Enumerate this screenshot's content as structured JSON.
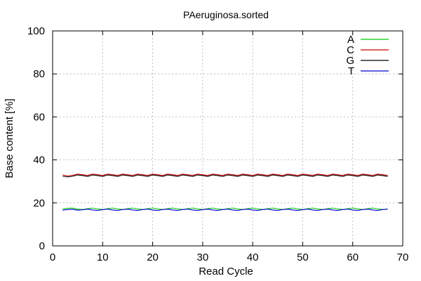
{
  "chart_data": {
    "type": "line",
    "title": "PAeruginosa.sorted",
    "xlabel": "Read Cycle",
    "ylabel": "Base content [%]",
    "xlim": [
      0,
      70
    ],
    "ylim": [
      0,
      100
    ],
    "xticks": [
      0,
      10,
      20,
      30,
      40,
      50,
      60,
      70
    ],
    "yticks": [
      0,
      20,
      40,
      60,
      80,
      100
    ],
    "grid": true,
    "legend_position": "top-right",
    "x": [
      2,
      3,
      4,
      5,
      6,
      7,
      8,
      9,
      10,
      11,
      12,
      13,
      14,
      15,
      16,
      17,
      18,
      19,
      20,
      21,
      22,
      23,
      24,
      25,
      26,
      27,
      28,
      29,
      30,
      31,
      32,
      33,
      34,
      35,
      36,
      37,
      38,
      39,
      40,
      41,
      42,
      43,
      44,
      45,
      46,
      47,
      48,
      49,
      50,
      51,
      52,
      53,
      54,
      55,
      56,
      57,
      58,
      59,
      60,
      61,
      62,
      63,
      64,
      65,
      66,
      67
    ],
    "series": [
      {
        "name": "A",
        "color": "#00cc00",
        "values": [
          17.2,
          17.5,
          17.6,
          17.1,
          16.9,
          17.3,
          17.6,
          17.2,
          16.9,
          17.3,
          17.6,
          17.2,
          16.9,
          17.3,
          17.6,
          17.2,
          16.9,
          17.3,
          17.6,
          17.2,
          16.9,
          17.3,
          17.6,
          17.2,
          16.9,
          17.3,
          17.6,
          17.2,
          16.9,
          17.3,
          17.6,
          17.2,
          16.9,
          17.3,
          17.6,
          17.2,
          16.9,
          17.3,
          17.6,
          17.2,
          16.9,
          17.3,
          17.6,
          17.2,
          16.9,
          17.3,
          17.6,
          17.2,
          16.9,
          17.3,
          17.6,
          17.2,
          16.9,
          17.3,
          17.6,
          17.2,
          16.9,
          17.3,
          17.6,
          17.2,
          16.9,
          17.3,
          17.6,
          17.2,
          16.9,
          17.2
        ]
      },
      {
        "name": "C",
        "color": "#cc0000",
        "values": [
          33.0,
          32.6,
          32.8,
          33.4,
          33.1,
          32.8,
          33.4,
          33.1,
          32.8,
          33.4,
          33.1,
          32.8,
          33.4,
          33.1,
          32.8,
          33.4,
          33.1,
          32.8,
          33.4,
          33.1,
          32.8,
          33.4,
          33.1,
          32.8,
          33.4,
          33.1,
          32.8,
          33.4,
          33.1,
          32.8,
          33.4,
          33.1,
          32.8,
          33.4,
          33.1,
          32.8,
          33.4,
          33.1,
          32.8,
          33.4,
          33.1,
          32.8,
          33.4,
          33.1,
          32.8,
          33.4,
          33.1,
          32.8,
          33.4,
          33.1,
          32.8,
          33.4,
          33.1,
          32.8,
          33.4,
          33.1,
          32.8,
          33.4,
          33.1,
          32.8,
          33.4,
          33.1,
          32.8,
          33.4,
          33.1,
          32.8
        ]
      },
      {
        "name": "G",
        "color": "#000000",
        "values": [
          32.4,
          32.1,
          32.4,
          33.0,
          32.7,
          32.3,
          33.0,
          32.7,
          32.3,
          33.0,
          32.7,
          32.3,
          33.0,
          32.7,
          32.3,
          33.0,
          32.7,
          32.3,
          33.0,
          32.7,
          32.3,
          33.0,
          32.7,
          32.3,
          33.0,
          32.7,
          32.3,
          33.0,
          32.7,
          32.3,
          33.0,
          32.7,
          32.3,
          33.0,
          32.7,
          32.3,
          33.0,
          32.7,
          32.3,
          33.0,
          32.7,
          32.3,
          33.0,
          32.7,
          32.3,
          33.0,
          32.7,
          32.3,
          33.0,
          32.7,
          32.3,
          33.0,
          32.7,
          32.3,
          33.0,
          32.7,
          32.3,
          33.0,
          32.7,
          32.3,
          33.0,
          32.7,
          32.3,
          33.0,
          32.7,
          32.3
        ]
      },
      {
        "name": "T",
        "color": "#0000cc",
        "values": [
          16.6,
          16.9,
          17.0,
          16.6,
          16.8,
          17.1,
          16.7,
          16.5,
          16.9,
          17.1,
          16.7,
          16.5,
          16.9,
          17.1,
          16.7,
          16.5,
          16.9,
          17.1,
          16.7,
          16.5,
          16.9,
          17.1,
          16.7,
          16.5,
          16.9,
          17.1,
          16.7,
          16.5,
          16.9,
          17.1,
          16.7,
          16.5,
          16.9,
          17.1,
          16.7,
          16.5,
          16.9,
          17.1,
          16.7,
          16.5,
          16.9,
          17.1,
          16.7,
          16.5,
          16.9,
          17.1,
          16.7,
          16.5,
          16.9,
          17.1,
          16.7,
          16.5,
          16.9,
          17.1,
          16.7,
          16.5,
          16.9,
          17.1,
          16.7,
          16.5,
          16.9,
          17.1,
          16.7,
          16.5,
          16.9,
          17.1
        ]
      }
    ]
  }
}
